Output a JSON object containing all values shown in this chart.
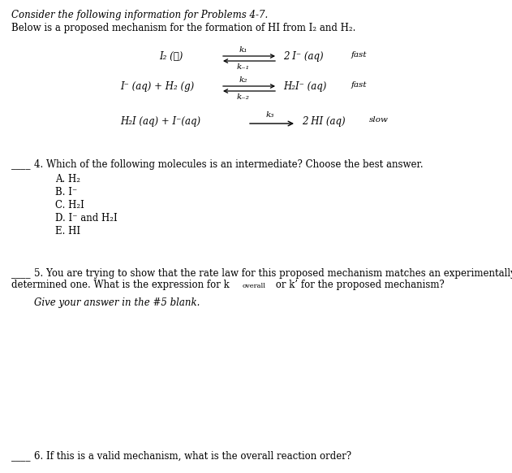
{
  "bg_color": "#ffffff",
  "title_italic": "Consider the following information for Problems 4-7.",
  "intro": "Below is a proposed mechanism for the formation of HI from I₂ and H₂.",
  "rxn1_left": "I₂ (ℓ)",
  "rxn1_right": "2 I⁻ (aq)",
  "rxn1_k_fwd": "k₁",
  "rxn1_k_rev": "k₋₁",
  "rxn1_speed": "fast",
  "rxn2_left": "I⁻ (aq) + H₂ (g)",
  "rxn2_right": "H₂I⁻ (aq)",
  "rxn2_k_fwd": "k₂",
  "rxn2_k_rev": "k₋₂",
  "rxn2_speed": "fast",
  "rxn3_left": "H₂I (aq) + I⁻(aq)",
  "rxn3_right": "2 HI (aq)",
  "rxn3_k_fwd": "k₃",
  "rxn3_speed": "slow",
  "q4_label": "____",
  "q4_text": "4. Which of the following molecules is an intermediate? Choose the best answer.",
  "q4_A": "A. H₂",
  "q4_B": "B. I⁻",
  "q4_C": "C. H₂I",
  "q4_D": "D. I⁻ and H₂I",
  "q4_E": "E. HI",
  "q5_label": "____",
  "q5_line1": "5. You are trying to show that the rate law for this proposed mechanism matches an experimentally",
  "q5_line2a": "determined one. What is the expression for k",
  "q5_line2b": "overall",
  "q5_line2c": " or k’ for the proposed mechanism?",
  "q5_italic": "Give your answer in the #5 blank.",
  "q6_label": "____",
  "q6_text": "6. If this is a valid mechanism, what is the overall reaction order?"
}
